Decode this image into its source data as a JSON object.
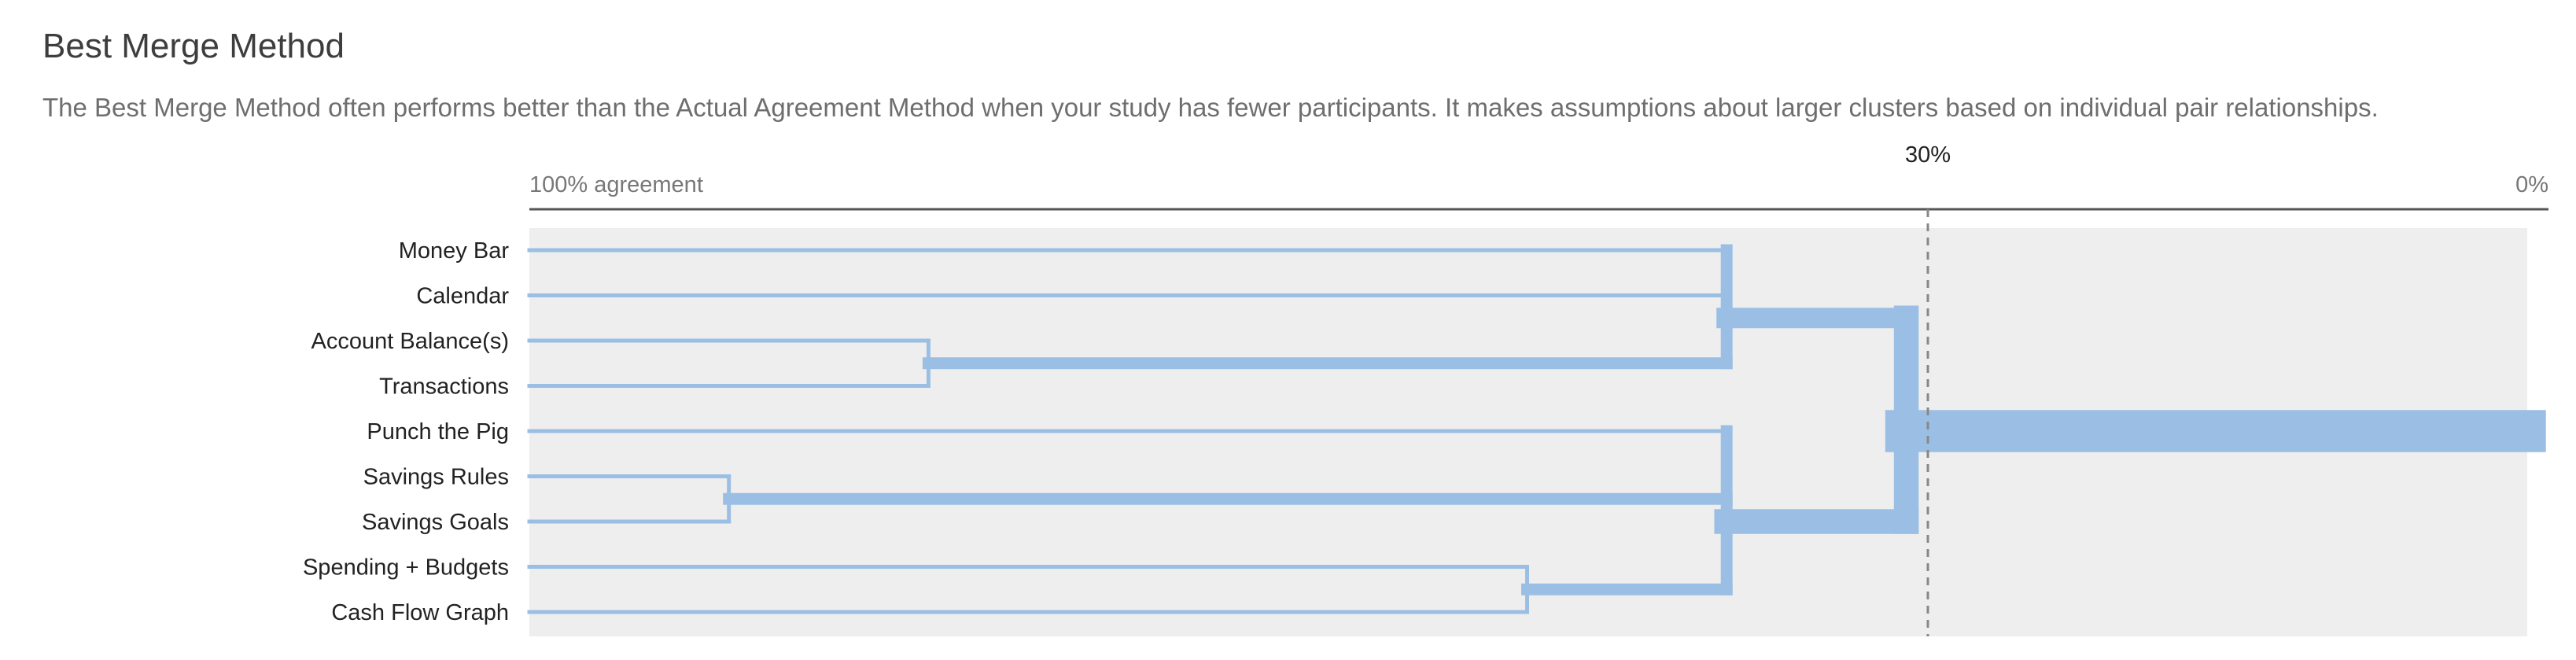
{
  "header": {
    "title": "Best Merge Method",
    "description": "The Best Merge Method often performs better than the Actual Agreement Method when your study has fewer participants. It makes assumptions about larger clusters based on individual pair relationships."
  },
  "chart_data": {
    "type": "dendrogram",
    "axis": {
      "left_label": "100% agreement",
      "right_label": "0%",
      "threshold_label": "30%",
      "threshold_value": 30,
      "range": [
        100,
        0
      ]
    },
    "leaves": [
      "Money Bar",
      "Calendar",
      "Account Balance(s)",
      "Transactions",
      "Punch the Pig",
      "Savings Rules",
      "Savings Goals",
      "Spending + Budgets",
      "Cash Flow Graph"
    ],
    "merges": [
      {
        "members": [
          "Savings Rules",
          "Savings Goals"
        ],
        "agreement": 90
      },
      {
        "members": [
          "Account Balance(s)",
          "Transactions"
        ],
        "agreement": 80
      },
      {
        "members": [
          "Spending + Budgets",
          "Cash Flow Graph"
        ],
        "agreement": 50
      },
      {
        "members": [
          "Money Bar",
          "Calendar",
          "Account Balance(s)",
          "Transactions"
        ],
        "agreement": 40
      },
      {
        "members": [
          "Punch the Pig",
          "Savings Rules",
          "Savings Goals",
          "Spending + Budgets",
          "Cash Flow Graph"
        ],
        "agreement": 40
      },
      {
        "members": [
          "Money Bar",
          "Calendar",
          "Account Balance(s)",
          "Transactions",
          "Punch the Pig",
          "Savings Rules",
          "Savings Goals",
          "Spending + Budgets",
          "Cash Flow Graph"
        ],
        "agreement": 31
      }
    ],
    "colors": {
      "branch": "#9bbfe4",
      "panel": "#eeeeee",
      "axis": "#555555",
      "threshold": "#888888"
    }
  }
}
